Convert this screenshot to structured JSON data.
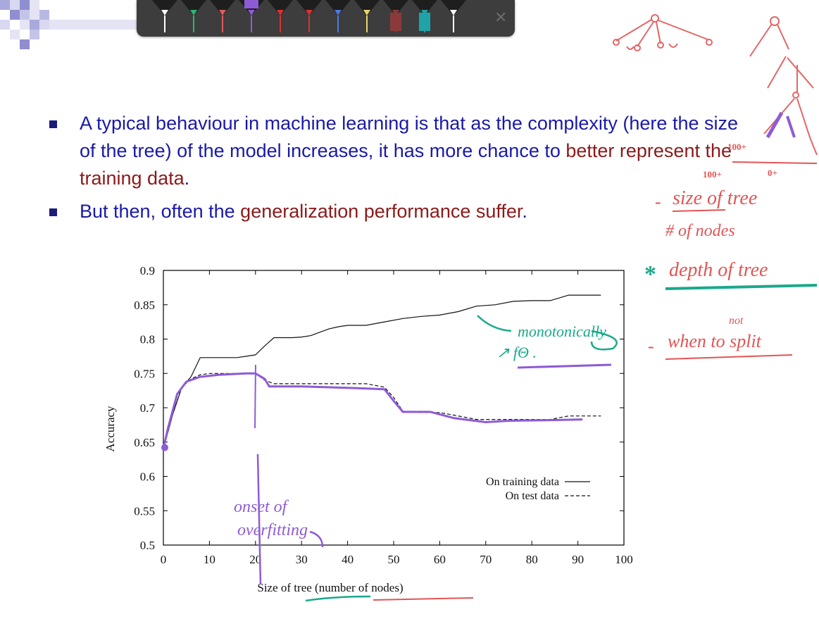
{
  "toolbar": {
    "pens": [
      {
        "color": "#ffffff",
        "name": "white-pen"
      },
      {
        "color": "#2bb673",
        "name": "green-pen"
      },
      {
        "color": "#e05a5a",
        "name": "pink-pen"
      },
      {
        "color": "#8e5bd6",
        "name": "purple-pen"
      },
      {
        "color": "#e03030",
        "name": "red-pen"
      },
      {
        "color": "#e03030",
        "name": "red-pen-2"
      },
      {
        "color": "#4a7be0",
        "name": "blue-pen"
      },
      {
        "color": "#e8d46a",
        "name": "yellow-pen"
      },
      {
        "color": "#8a3a3a",
        "name": "maroon-highlighter"
      },
      {
        "color": "#1fa3a8",
        "name": "teal-highlighter"
      },
      {
        "color": "#ffffff",
        "name": "white-pen-2"
      }
    ],
    "selected_pen": "purple-pen",
    "close_icon": "close-icon"
  },
  "slide": {
    "bullet1_a": "A typical behaviour in machine learning is that as the complexity (here the size of the tree)  of the model increases, it has more chance to ",
    "bullet1_highlight": "better represent the training data",
    "bullet1_end": ".",
    "bullet2_a": "But then, often the ",
    "bullet2_highlight": "generalization performance suffer",
    "bullet2_end": "."
  },
  "chart_data": {
    "type": "line",
    "xlabel": "Size of tree (number of nodes)",
    "ylabel": "Accuracy",
    "xlim": [
      0,
      100
    ],
    "ylim": [
      0.5,
      0.9
    ],
    "xticks": [
      "0",
      "10",
      "20",
      "30",
      "40",
      "50",
      "60",
      "70",
      "80",
      "90",
      "100"
    ],
    "yticks": [
      "0.5",
      "0.55",
      "0.6",
      "0.65",
      "0.7",
      "0.75",
      "0.8",
      "0.85",
      "0.9"
    ],
    "legend_position": "lower-right",
    "series": [
      {
        "name": "On training data",
        "style": "solid",
        "x": [
          0,
          2,
          4,
          6,
          8,
          10,
          12,
          14,
          16,
          18,
          20,
          22,
          24,
          26,
          28,
          30,
          32,
          34,
          36,
          38,
          40,
          44,
          48,
          52,
          56,
          60,
          64,
          68,
          72,
          76,
          80,
          84,
          88,
          92,
          95
        ],
        "y": [
          0.64,
          0.69,
          0.73,
          0.745,
          0.773,
          0.773,
          0.773,
          0.773,
          0.773,
          0.775,
          0.777,
          0.79,
          0.802,
          0.802,
          0.802,
          0.803,
          0.805,
          0.81,
          0.815,
          0.818,
          0.82,
          0.82,
          0.825,
          0.83,
          0.833,
          0.835,
          0.84,
          0.848,
          0.85,
          0.855,
          0.856,
          0.856,
          0.864,
          0.864,
          0.864
        ]
      },
      {
        "name": "On test data",
        "style": "dashed",
        "x": [
          0,
          2,
          4,
          6,
          8,
          10,
          14,
          18,
          20,
          22,
          24,
          30,
          40,
          44,
          48,
          50,
          52,
          56,
          60,
          64,
          68,
          72,
          76,
          80,
          84,
          88,
          92,
          95
        ],
        "y": [
          0.64,
          0.69,
          0.73,
          0.742,
          0.748,
          0.75,
          0.75,
          0.75,
          0.75,
          0.74,
          0.735,
          0.735,
          0.735,
          0.735,
          0.73,
          0.715,
          0.695,
          0.693,
          0.693,
          0.688,
          0.683,
          0.683,
          0.683,
          0.683,
          0.683,
          0.688,
          0.688,
          0.688
        ]
      }
    ]
  },
  "annotations": {
    "onset_line1": "onset of",
    "onset_line2": "overfitting",
    "mono_line1": "monotonically",
    "mono_line2": "↗ fΘ .",
    "sizeoftree": "size of tree",
    "numnodes": "# of nodes",
    "depth": "depth of tree",
    "not": "not",
    "whentosplit": "when to split",
    "n100a": "100+",
    "n100b": "100+",
    "n0": "0+"
  }
}
